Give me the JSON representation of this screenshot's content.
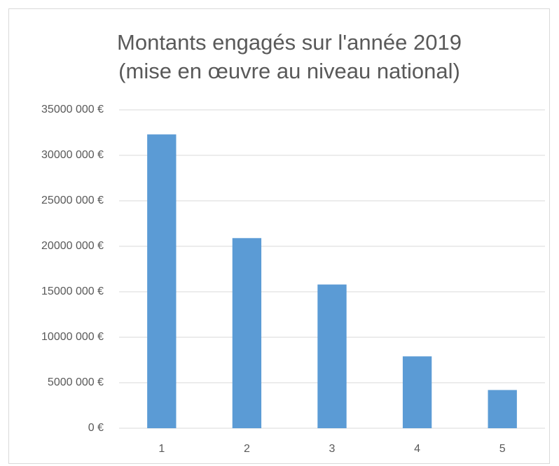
{
  "chart_data": {
    "type": "bar",
    "title": "Montants engagés sur l'année 2019",
    "subtitle": "(mise en œuvre au niveau national)",
    "categories": [
      "1",
      "2",
      "3",
      "4",
      "5"
    ],
    "values": [
      32300000,
      20900000,
      15800000,
      7900000,
      4200000
    ],
    "color": "#5b9bd5",
    "ylim": [
      0,
      35000000
    ],
    "yticks": [
      {
        "value": 0,
        "label": "0 €"
      },
      {
        "value": 5000000,
        "label": "5000 000 €"
      },
      {
        "value": 10000000,
        "label": "10000 000 €"
      },
      {
        "value": 15000000,
        "label": "15000 000 €"
      },
      {
        "value": 20000000,
        "label": "20000 000 €"
      },
      {
        "value": 25000000,
        "label": "25000 000 €"
      },
      {
        "value": 30000000,
        "label": "30000 000 €"
      },
      {
        "value": 35000000,
        "label": "35000 000 €"
      }
    ],
    "grid": true
  }
}
